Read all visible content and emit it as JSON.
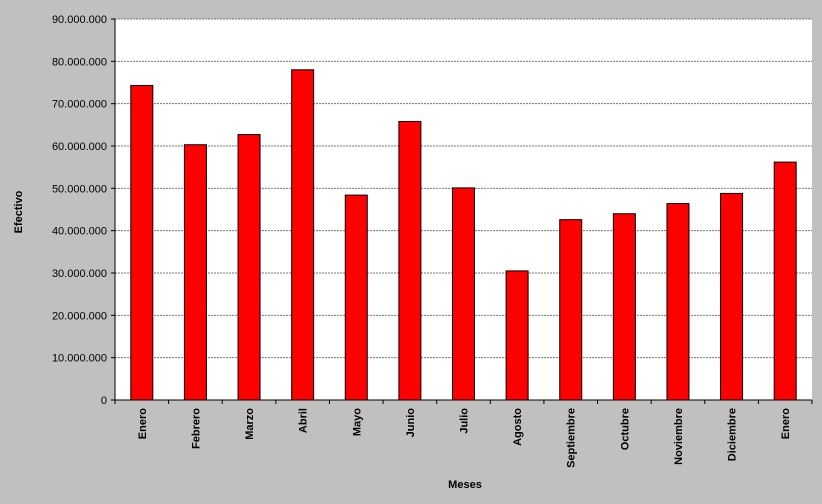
{
  "chart_data": {
    "type": "bar",
    "title": "",
    "xlabel": "Meses",
    "ylabel": "Efectivo",
    "ylim": [
      0,
      90000000
    ],
    "yticks": [
      "0",
      "10.000.000",
      "20.000.000",
      "30.000.000",
      "40.000.000",
      "50.000.000",
      "60.000.000",
      "70.000.000",
      "80.000.000",
      "90.000.000"
    ],
    "grid": true,
    "categories": [
      "Enero",
      "Febrero",
      "Marzo",
      "Abril",
      "Mayo",
      "Junio",
      "Julio",
      "Agosto",
      "Septiembre",
      "Octubre",
      "Noviembre",
      "Diciembre",
      "Enero"
    ],
    "values": [
      74300000,
      60300000,
      62700000,
      78000000,
      48400000,
      65800000,
      50100000,
      30500000,
      42600000,
      44000000,
      46400000,
      48800000,
      56200000
    ],
    "bar_color": "#ff0000",
    "background_color": "#c0c0c0",
    "plot_background": "#ffffff"
  }
}
